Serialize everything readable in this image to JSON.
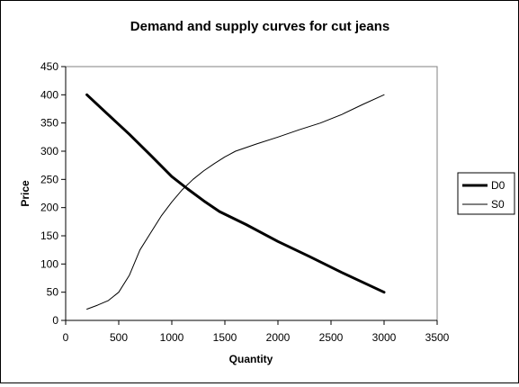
{
  "chart_data": {
    "type": "line",
    "title": "Demand and supply curves for cut jeans",
    "xlabel": "Quantity",
    "ylabel": "Price",
    "xlim": [
      0,
      3500
    ],
    "ylim": [
      0,
      450
    ],
    "xticks": [
      0,
      500,
      1000,
      1500,
      2000,
      2500,
      3000,
      3500
    ],
    "yticks": [
      0,
      50,
      100,
      150,
      200,
      250,
      300,
      350,
      400,
      450
    ],
    "grid": false,
    "legend": "right",
    "series": [
      {
        "name": "D0",
        "color": "#000000",
        "x": [
          200,
          400,
          600,
          800,
          1000,
          1150,
          1300,
          1450,
          1700,
          2000,
          2300,
          2600,
          3000
        ],
        "y": [
          400,
          365,
          330,
          293,
          255,
          233,
          212,
          193,
          170,
          140,
          113,
          85,
          50
        ]
      },
      {
        "name": "S0",
        "color": "#000000",
        "x": [
          200,
          300,
          400,
          500,
          600,
          700,
          800,
          900,
          1000,
          1100,
          1200,
          1300,
          1400,
          1500,
          1600,
          1800,
          2000,
          2200,
          2400,
          2600,
          2800,
          3000
        ],
        "y": [
          20,
          27,
          35,
          50,
          80,
          125,
          155,
          185,
          210,
          232,
          250,
          265,
          278,
          290,
          300,
          313,
          325,
          338,
          350,
          365,
          383,
          400
        ]
      }
    ]
  }
}
